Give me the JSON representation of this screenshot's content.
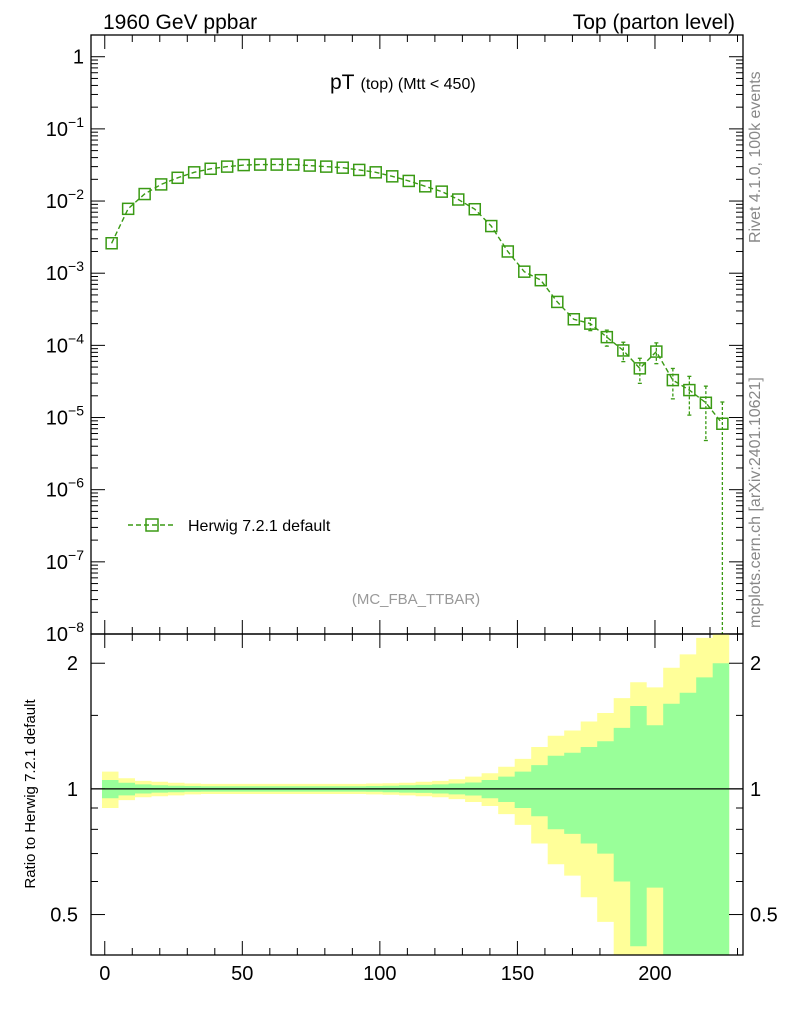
{
  "header": {
    "left": "1960 GeV ppbar",
    "right": "Top (parton level)"
  },
  "side": {
    "rivet": "Rivet 4.1.0,  100k events",
    "mcplots": "mcplots.cern.ch [arXiv:2401.10621]"
  },
  "colors": {
    "series": "#3a9a14",
    "band_inner": "#99ff99",
    "band_outer": "#ffff99",
    "ref_line": "#000000"
  },
  "chart_data": {
    "type": "line",
    "title": "pT (top) (Mtt < 450)",
    "title_main": "pT",
    "title_sub": "(top) (Mtt < 450)",
    "analysis_tag": "(MC_FBA_TTBAR)",
    "legend": [
      "Herwig 7.2.1 default"
    ],
    "x_ticks": [
      "0",
      "50",
      "100",
      "150",
      "200"
    ],
    "xlim": [
      -5,
      232
    ],
    "upper": {
      "yscale": "log",
      "ylim": [
        1e-08,
        2
      ],
      "y_ticks": [
        {
          "base": "1",
          "exp": ""
        },
        {
          "base": "10",
          "exp": "−1"
        },
        {
          "base": "10",
          "exp": "−2"
        },
        {
          "base": "10",
          "exp": "−3"
        },
        {
          "base": "10",
          "exp": "−4"
        },
        {
          "base": "10",
          "exp": "−5"
        },
        {
          "base": "10",
          "exp": "−6"
        },
        {
          "base": "10",
          "exp": "−7"
        },
        {
          "base": "10",
          "exp": "−8"
        }
      ],
      "series": [
        {
          "name": "Herwig 7.2.1 default",
          "x": [
            2.5,
            8.5,
            14.5,
            20.5,
            26.5,
            32.5,
            38.5,
            44.5,
            50.5,
            56.5,
            62.5,
            68.5,
            74.5,
            80.5,
            86.5,
            92.5,
            98.5,
            104.5,
            110.5,
            116.5,
            122.5,
            128.5,
            134.5,
            140.5,
            146.5,
            152.5,
            158.5,
            164.5,
            170.5,
            176.5,
            182.5,
            188.5,
            194.5,
            200.5,
            206.5,
            212.5,
            218.5,
            224.5
          ],
          "y": [
            0.0026,
            0.0078,
            0.0125,
            0.017,
            0.021,
            0.025,
            0.028,
            0.03,
            0.0315,
            0.032,
            0.032,
            0.032,
            0.031,
            0.03,
            0.029,
            0.027,
            0.025,
            0.022,
            0.019,
            0.016,
            0.0135,
            0.0105,
            0.0077,
            0.0045,
            0.002,
            0.00105,
            0.0008,
            0.0004,
            0.00023,
            0.0002,
            0.00013,
            8.5e-05,
            4.8e-05,
            8.2e-05,
            3.3e-05,
            2.4e-05,
            1.6e-05,
            8.2e-06
          ],
          "yerr_rel": [
            0.06,
            0.04,
            0.03,
            0.025,
            0.02,
            0.02,
            0.02,
            0.02,
            0.02,
            0.02,
            0.02,
            0.02,
            0.02,
            0.02,
            0.02,
            0.02,
            0.02,
            0.02,
            0.02,
            0.025,
            0.03,
            0.035,
            0.04,
            0.05,
            0.07,
            0.09,
            0.11,
            0.14,
            0.17,
            0.2,
            0.25,
            0.3,
            0.38,
            0.32,
            0.45,
            0.55,
            0.7,
            1.0
          ]
        }
      ]
    },
    "lower": {
      "ylabel": "Ratio to Herwig 7.2.1 default",
      "yscale": "log",
      "ylim": [
        0.4,
        2.35
      ],
      "y_ticks": [
        "0.5",
        "1",
        "2"
      ],
      "y_tick_values": [
        0.5,
        1,
        2
      ],
      "bin_edges": [
        -1,
        5,
        11,
        17,
        23,
        29,
        35,
        41,
        47,
        53,
        59,
        65,
        71,
        77,
        83,
        89,
        95,
        101,
        107,
        113,
        119,
        125,
        131,
        137,
        143,
        149,
        155,
        161,
        167,
        173,
        179,
        185,
        191,
        197,
        203,
        209,
        215,
        221,
        227
      ],
      "stat_band": [
        0.05,
        0.035,
        0.025,
        0.02,
        0.018,
        0.016,
        0.015,
        0.015,
        0.015,
        0.015,
        0.015,
        0.015,
        0.015,
        0.015,
        0.015,
        0.015,
        0.016,
        0.018,
        0.02,
        0.022,
        0.025,
        0.03,
        0.036,
        0.05,
        0.07,
        0.1,
        0.14,
        0.2,
        0.22,
        0.26,
        0.3,
        0.4,
        0.58,
        0.42,
        0.6,
        0.7,
        0.85,
        1.0
      ],
      "total_band": [
        0.1,
        0.06,
        0.045,
        0.04,
        0.035,
        0.03,
        0.028,
        0.028,
        0.028,
        0.028,
        0.028,
        0.028,
        0.028,
        0.028,
        0.028,
        0.028,
        0.03,
        0.032,
        0.035,
        0.04,
        0.045,
        0.055,
        0.07,
        0.09,
        0.13,
        0.18,
        0.26,
        0.34,
        0.38,
        0.45,
        0.52,
        0.65,
        0.8,
        0.75,
        0.95,
        1.1,
        1.3,
        1.35
      ]
    }
  }
}
